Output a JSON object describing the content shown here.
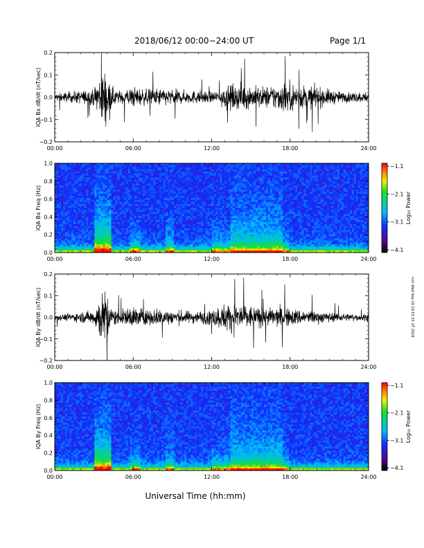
{
  "header": {
    "title": "2018/06/12  00:00−24:00 UT",
    "page": "Page 1/1"
  },
  "footer": {
    "xlabel": "Universal Time (hh:mm)"
  },
  "stamp": "rich Wed Sep 19 19:53:33 UT 2018",
  "chart_data": [
    {
      "type": "line",
      "ylabel": "IQA Bx dB/dt (nT/sec)",
      "ylim": [
        -0.2,
        0.2
      ],
      "yticks": [
        "0.2",
        "0.1",
        "0.0",
        "−0.1",
        "−0.2"
      ],
      "xticks": [
        "00:00",
        "06:00",
        "12:00",
        "18:00",
        "24:00"
      ],
      "xlim_hours": [
        0,
        24
      ],
      "color": "#000000",
      "envelope": {
        "hours": [
          0,
          1,
          2,
          3,
          3.5,
          4,
          4.3,
          5,
          6,
          7,
          8,
          9,
          10,
          11,
          12,
          13,
          14,
          15,
          16,
          17,
          17.5,
          18,
          19,
          20,
          21,
          22,
          23,
          24
        ],
        "amplitude": [
          0.03,
          0.04,
          0.05,
          0.06,
          0.22,
          0.22,
          0.08,
          0.05,
          0.08,
          0.06,
          0.07,
          0.06,
          0.05,
          0.05,
          0.04,
          0.08,
          0.1,
          0.09,
          0.08,
          0.1,
          0.12,
          0.11,
          0.09,
          0.08,
          0.06,
          0.04,
          0.04,
          0.04
        ]
      }
    },
    {
      "type": "heatmap",
      "ylabel": "IQA Bx Freq (Hz)",
      "ylim": [
        0.0,
        1.0
      ],
      "yticks": [
        "1.0",
        "0.8",
        "0.6",
        "0.4",
        "0.2",
        "0.0"
      ],
      "xticks": [
        "00:00",
        "06:00",
        "12:00",
        "18:00",
        "24:00"
      ],
      "colorbar": {
        "label": "Log₁₀ Power",
        "ticks": [
          "−1.1",
          "−2.1",
          "−3.1",
          "−4.1"
        ],
        "range": [
          -4.1,
          -1.1
        ]
      }
    },
    {
      "type": "line",
      "ylabel": "IQA By dB/dt (nT/sec)",
      "ylim": [
        -0.2,
        0.2
      ],
      "yticks": [
        "0.2",
        "0.1",
        "0.0",
        "−0.1",
        "−0.2"
      ],
      "xticks": [
        "00:00",
        "06:00",
        "12:00",
        "18:00",
        "24:00"
      ],
      "xlim_hours": [
        0,
        24
      ],
      "color": "#000000",
      "envelope": {
        "hours": [
          0,
          1,
          2,
          3,
          3.5,
          4,
          4.3,
          5,
          6,
          7,
          8,
          9,
          10,
          11,
          12,
          13,
          14,
          15,
          16,
          17,
          17.5,
          18,
          19,
          20,
          21,
          22,
          23,
          24
        ],
        "amplitude": [
          0.02,
          0.03,
          0.04,
          0.06,
          0.2,
          0.2,
          0.08,
          0.05,
          0.09,
          0.06,
          0.07,
          0.06,
          0.05,
          0.05,
          0.06,
          0.11,
          0.12,
          0.09,
          0.07,
          0.08,
          0.08,
          0.07,
          0.06,
          0.05,
          0.04,
          0.03,
          0.03,
          0.03
        ]
      }
    },
    {
      "type": "heatmap",
      "ylabel": "IQA By Freq (Hz)",
      "ylim": [
        0.0,
        1.0
      ],
      "yticks": [
        "1.0",
        "0.8",
        "0.6",
        "0.4",
        "0.2",
        "0.0"
      ],
      "xticks": [
        "00:00",
        "06:00",
        "12:00",
        "18:00",
        "24:00"
      ],
      "colorbar": {
        "label": "Log₁₀ Power",
        "ticks": [
          "−1.1",
          "−2.1",
          "−3.1",
          "−4.1"
        ],
        "range": [
          -4.1,
          -1.1
        ]
      }
    }
  ]
}
